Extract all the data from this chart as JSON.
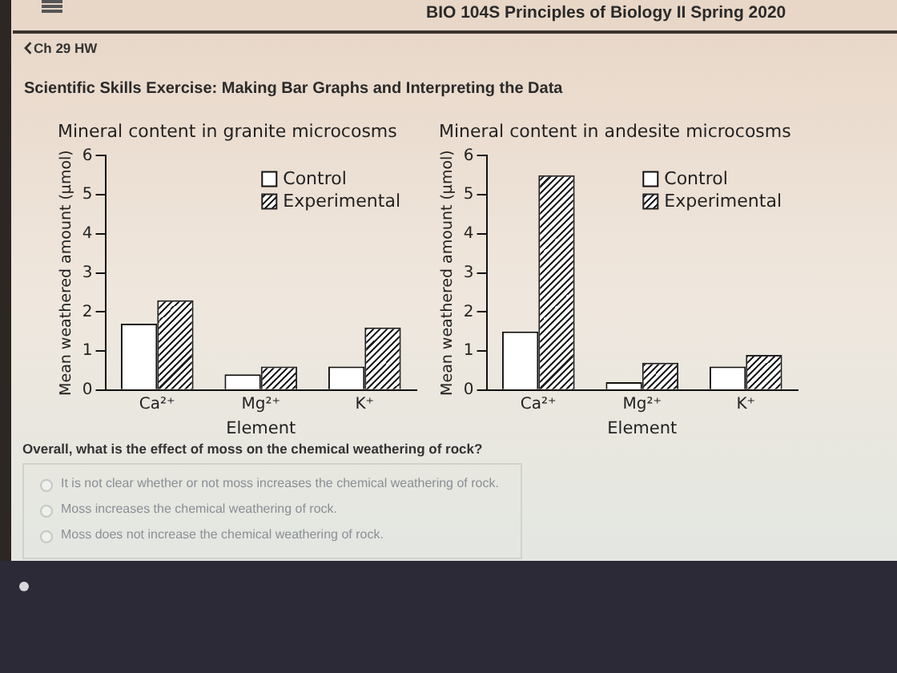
{
  "chart_data": [
    {
      "type": "other",
      "title": "Scientific Skills Exercise: Making Bar Graphs and Interpreting the Data",
      "annotations": [
        "BIO 104S Principles of Biology II Spring 2020",
        "Ch 29 HW"
      ]
    },
    {
      "type": "bar",
      "title": "Mineral content in granite microcosms",
      "xlabel": "Element",
      "ylabel": "Mean weathered amount (μmol)",
      "categories": [
        "Ca²⁺",
        "Mg²⁺",
        "K⁺"
      ],
      "series": [
        {
          "name": "Control",
          "color": "#ffffff",
          "values": [
            1.7,
            0.4,
            0.6
          ]
        },
        {
          "name": "Experimental",
          "color": "#222222",
          "values": [
            2.3,
            0.6,
            1.6
          ]
        }
      ],
      "ylim": [
        0,
        6
      ],
      "yticks": [
        0,
        1,
        2,
        3,
        4,
        5,
        6
      ],
      "legend": "top right"
    },
    {
      "type": "bar",
      "title": "Mineral content in andesite microcosms",
      "xlabel": "Element",
      "ylabel": "Mean weathered amount (μmol)",
      "categories": [
        "Ca²⁺",
        "Mg²⁺",
        "K⁺"
      ],
      "series": [
        {
          "name": "Control",
          "color": "#ffffff",
          "values": [
            1.5,
            0.2,
            0.6
          ]
        },
        {
          "name": "Experimental",
          "color": "#222222",
          "values": [
            5.5,
            0.7,
            0.9
          ]
        }
      ],
      "ylim": [
        0,
        6
      ],
      "yticks": [
        0,
        1,
        2,
        3,
        4,
        5,
        6
      ],
      "legend": "top right"
    },
    {
      "type": "other",
      "title": "Overall, what is the effect of moss on the chemical weathering of rock?",
      "annotations": [
        "It is not clear whether or not moss increases the chemical weathering of rock.",
        "Moss increases the chemical weathering of rock.",
        "Moss does not increase the chemical weathering of rock."
      ]
    }
  ]
}
